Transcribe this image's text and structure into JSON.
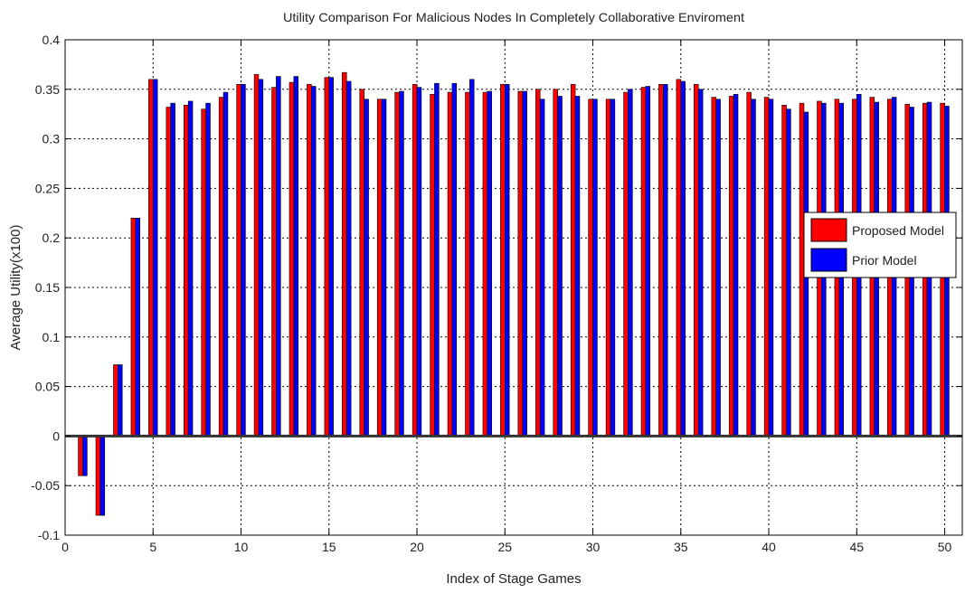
{
  "chart_data": {
    "type": "bar",
    "title": "Utility Comparison For Malicious Nodes In Completely Collaborative Enviroment",
    "xlabel": "Index of Stage Games",
    "ylabel": "Average Utility(x100)",
    "xlim": [
      0,
      51
    ],
    "ylim": [
      -0.1,
      0.4
    ],
    "xticks": [
      0,
      5,
      10,
      15,
      20,
      25,
      30,
      35,
      40,
      45,
      50
    ],
    "yticks": [
      -0.1,
      -0.05,
      0,
      0.05,
      0.1,
      0.15,
      0.2,
      0.25,
      0.3,
      0.35,
      0.4
    ],
    "ytick_labels": [
      "-0.1",
      "-0.05",
      "0",
      "0.05",
      "0.1",
      "0.15",
      "0.2",
      "0.25",
      "0.3",
      "0.35",
      "0.4"
    ],
    "grid": true,
    "legend_position": "right",
    "x": [
      1,
      2,
      3,
      4,
      5,
      6,
      7,
      8,
      9,
      10,
      11,
      12,
      13,
      14,
      15,
      16,
      17,
      18,
      19,
      20,
      21,
      22,
      23,
      24,
      25,
      26,
      27,
      28,
      29,
      30,
      31,
      32,
      33,
      34,
      35,
      36,
      37,
      38,
      39,
      40,
      41,
      42,
      43,
      44,
      45,
      46,
      47,
      48,
      49,
      50
    ],
    "series": [
      {
        "name": "Proposed Model",
        "color": "#ff0000",
        "values": [
          -0.04,
          -0.08,
          0.072,
          0.22,
          0.36,
          0.332,
          0.334,
          0.33,
          0.342,
          0.355,
          0.365,
          0.352,
          0.357,
          0.355,
          0.362,
          0.367,
          0.35,
          0.34,
          0.347,
          0.355,
          0.345,
          0.347,
          0.347,
          0.347,
          0.355,
          0.348,
          0.35,
          0.35,
          0.355,
          0.34,
          0.34,
          0.347,
          0.352,
          0.355,
          0.36,
          0.355,
          0.342,
          0.343,
          0.347,
          0.342,
          0.334,
          0.336,
          0.338,
          0.34,
          0.34,
          0.342,
          0.34,
          0.335,
          0.336,
          0.336
        ]
      },
      {
        "name": "Prior Model",
        "color": "#0000ff",
        "values": [
          -0.04,
          -0.08,
          0.072,
          0.22,
          0.36,
          0.336,
          0.338,
          0.336,
          0.347,
          0.355,
          0.36,
          0.363,
          0.363,
          0.353,
          0.362,
          0.358,
          0.34,
          0.34,
          0.348,
          0.352,
          0.356,
          0.356,
          0.36,
          0.348,
          0.355,
          0.348,
          0.34,
          0.343,
          0.343,
          0.34,
          0.34,
          0.35,
          0.353,
          0.355,
          0.358,
          0.35,
          0.34,
          0.345,
          0.34,
          0.34,
          0.33,
          0.327,
          0.336,
          0.336,
          0.345,
          0.337,
          0.342,
          0.332,
          0.337,
          0.333
        ]
      }
    ]
  }
}
